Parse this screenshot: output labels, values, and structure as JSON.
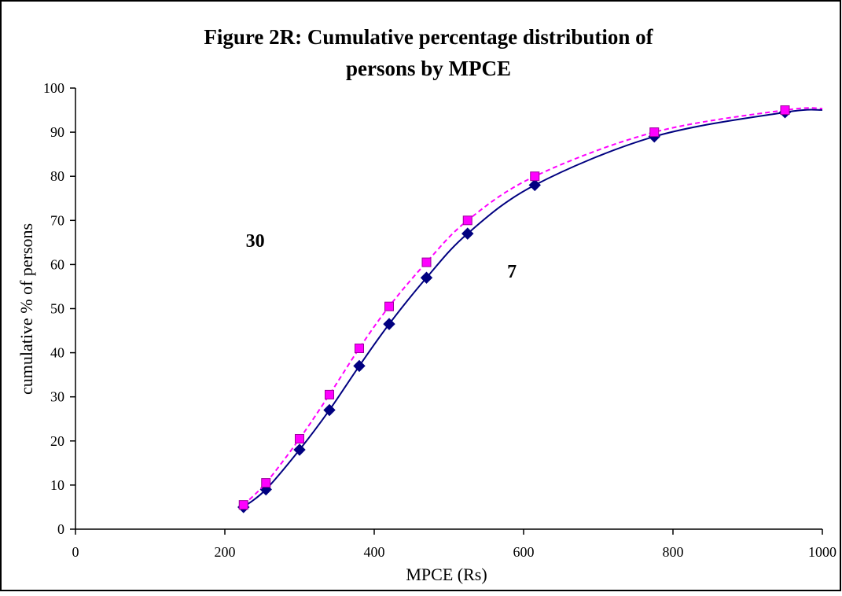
{
  "chart_data": {
    "type": "line",
    "title_lines": [
      "Figure 2R: Cumulative percentage distribution of",
      "persons by MPCE"
    ],
    "xlabel": "MPCE (Rs)",
    "ylabel": "cumulative % of persons",
    "xlim": [
      0,
      1000
    ],
    "ylim": [
      0,
      100
    ],
    "x_ticks": [
      "0",
      "200",
      "400",
      "600",
      "800",
      "1000"
    ],
    "y_ticks": [
      "0",
      "10",
      "20",
      "30",
      "40",
      "50",
      "60",
      "70",
      "80",
      "90",
      "100"
    ],
    "grid": false,
    "legend": "none",
    "series": [
      {
        "color": "#000080",
        "line_style": "solid",
        "marker": "diamond",
        "x": [
          225,
          255,
          300,
          340,
          380,
          420,
          470,
          525,
          615,
          775,
          950
        ],
        "y": [
          5,
          9,
          18,
          27,
          37,
          46.5,
          57,
          67,
          78,
          89,
          94.5
        ]
      },
      {
        "color": "#FF00FF",
        "line_style": "dashed",
        "marker": "square",
        "x": [
          225,
          255,
          300,
          340,
          380,
          420,
          470,
          525,
          615,
          775,
          950
        ],
        "y": [
          5.5,
          10.5,
          20.5,
          30.5,
          41,
          50.5,
          60.5,
          70,
          80,
          90,
          95
        ]
      }
    ],
    "annotations": [
      {
        "text": "30",
        "x": 228,
        "y": 64
      },
      {
        "text": "7",
        "x": 578,
        "y": 57
      }
    ]
  }
}
